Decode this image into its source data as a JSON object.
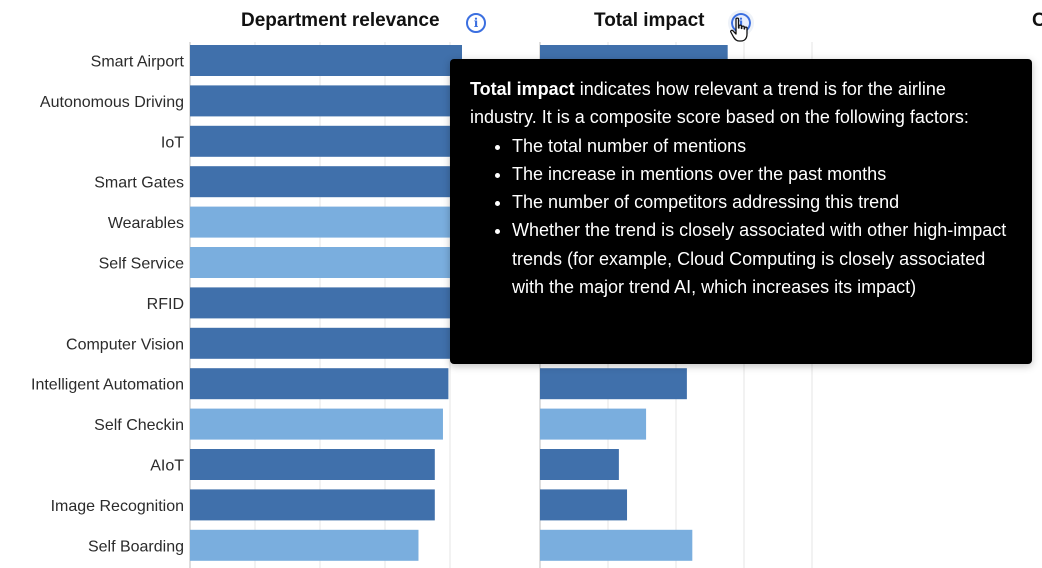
{
  "headers": {
    "department_relevance": "Department relevance",
    "total_impact": "Total impact",
    "third_column_partial": "C"
  },
  "icons": {
    "info": "info-icon",
    "cursor": "hand-pointer-icon"
  },
  "tooltip": {
    "title": "Total impact",
    "intro": " indicates how relevant a trend is for the airline industry. It is a composite score based on the following factors:",
    "bullets": [
      "The total number of mentions",
      "The increase in mentions over the past months",
      "The number of competitors addressing this trend",
      "Whether the trend is closely associated with other high-impact trends (for example, Cloud Computing is closely associated with the major trend AI, which increases its impact)"
    ]
  },
  "colors": {
    "dark_bar": "#4070ab",
    "light_bar": "#7aaede",
    "grid": "#e4e4e4",
    "info_blue": "#3b6fe0",
    "tooltip_bg": "#000000"
  },
  "chart_data": {
    "type": "bar",
    "orientation": "horizontal",
    "categories": [
      "Smart Airport",
      "Autonomous Driving",
      "IoT",
      "Smart Gates",
      "Wearables",
      "Self Service",
      "RFID",
      "Computer Vision",
      "Intelligent Automation",
      "Self Checkin",
      "AIoT",
      "Image Recognition",
      "Self Boarding"
    ],
    "shade": [
      "dark",
      "dark",
      "dark",
      "dark",
      "light",
      "light",
      "dark",
      "dark",
      "dark",
      "light",
      "dark",
      "dark",
      "light"
    ],
    "series": [
      {
        "values": [
          100,
          98,
          98,
          97,
          97,
          97,
          97,
          96,
          95,
          93,
          90,
          90,
          84
        ]
      },
      {
        "values": [
          69,
          null,
          null,
          null,
          null,
          null,
          null,
          null,
          54,
          39,
          29,
          32,
          56
        ]
      }
    ],
    "grid": true,
    "legend": "none"
  }
}
